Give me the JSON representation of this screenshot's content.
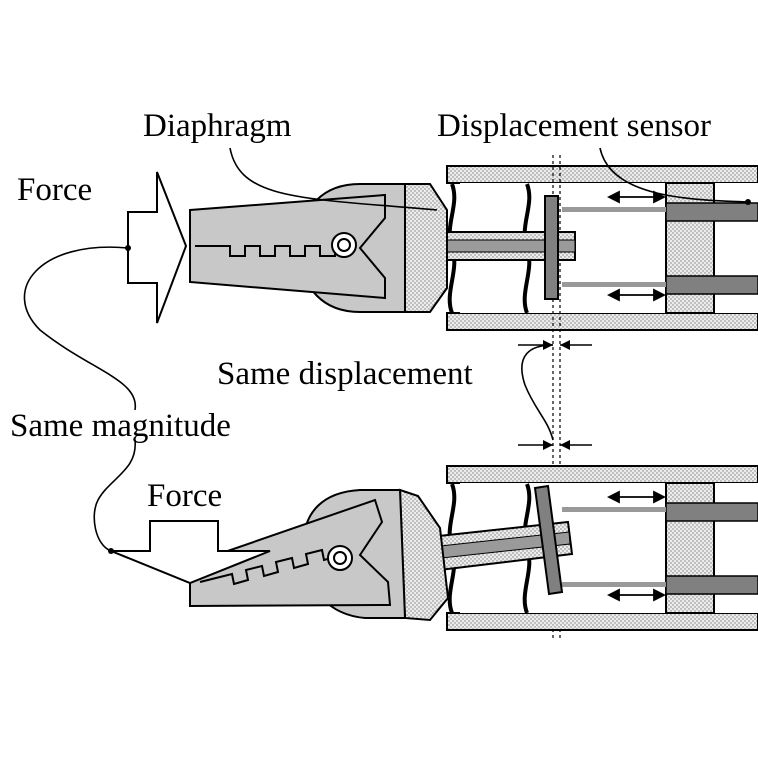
{
  "labels": {
    "diaphragm": "Diaphragm",
    "displacement_sensor": "Displacement sensor",
    "force_top": "Force",
    "force_bottom": "Force",
    "same_displacement": "Same displacement",
    "same_magnitude": "Same magnitude"
  },
  "colors": {
    "housing_gray": "#d0d0d0",
    "dark_gray": "#808080",
    "dotted_fill": "#e2e2e2",
    "line": "#000000"
  }
}
